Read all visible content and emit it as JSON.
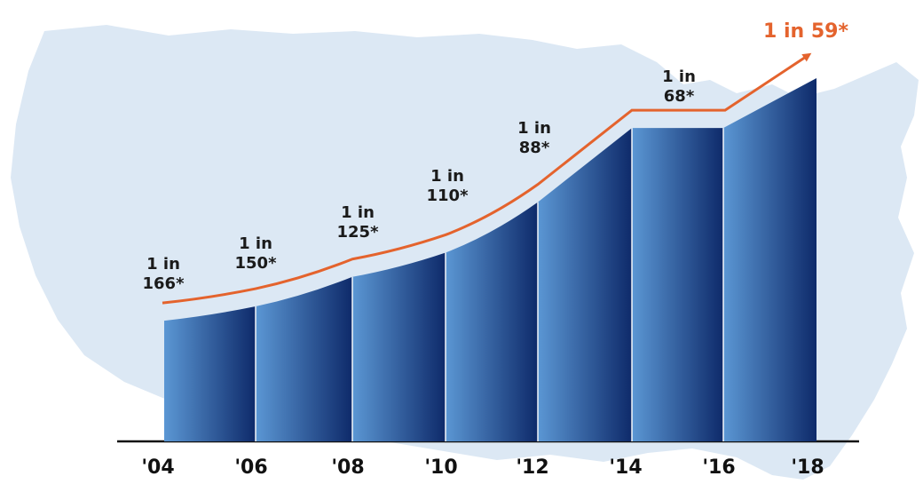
{
  "colors": {
    "map": "#dce8f4",
    "bar_light": "#5b97d4",
    "bar_dark": "#0e2a6a",
    "trend": "#e4632d",
    "axis": "#111111",
    "text": "#1a1a1a"
  },
  "chart_data": {
    "type": "area",
    "x": [
      "'04",
      "'06",
      "'08",
      "'10",
      "'12",
      "'14",
      "'16",
      "'18"
    ],
    "y": [
      166,
      150,
      125,
      110,
      88,
      68,
      68,
      59
    ],
    "labels": [
      {
        "line1": "1 in",
        "line2": "166*"
      },
      {
        "line1": "1 in",
        "line2": "150*"
      },
      {
        "line1": "1 in",
        "line2": "125*"
      },
      {
        "line1": "1 in",
        "line2": "110*"
      },
      {
        "line1": "1 in",
        "line2": "88*"
      },
      {
        "line1": "1 in",
        "line2": "68*"
      }
    ],
    "highlight": "1 in 59*",
    "grid": false,
    "legend": "none"
  }
}
